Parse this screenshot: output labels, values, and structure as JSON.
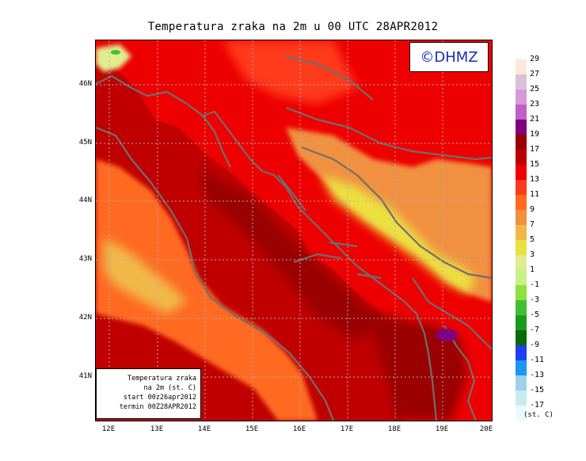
{
  "title": "Temperatura zraka na 2m u 00 UTC 28APR2012",
  "watermark": "©DHMZ",
  "info_box": {
    "line1": "Temperatura zraka",
    "line2": "na 2m (st. C)",
    "line3": "start 00z26apr2012",
    "line4": "termin 00Z28APR2012"
  },
  "latitude_labels": [
    "46N",
    "45N",
    "44N",
    "43N",
    "42N",
    "41N"
  ],
  "longitude_labels": [
    "12E",
    "13E",
    "14E",
    "15E",
    "16E",
    "17E",
    "18E",
    "19E",
    "20E"
  ],
  "legend": {
    "labels": [
      "29",
      "27",
      "25",
      "23",
      "21",
      "19",
      "17",
      "15",
      "13",
      "11",
      "9",
      "7",
      "5",
      "3",
      "1",
      "-1",
      "-3",
      "-5",
      "-7",
      "-9",
      "-11",
      "-13",
      "-15",
      "-17"
    ],
    "colors": [
      "#fbe8d8",
      "#dcc0d8",
      "#d89ad4",
      "#c060c8",
      "#800080",
      "#9a0000",
      "#c00000",
      "#ee0000",
      "#ff3a1a",
      "#ff6a20",
      "#f09040",
      "#f0b848",
      "#ece040",
      "#e0ec90",
      "#c8f088",
      "#90e040",
      "#40c030",
      "#1a9a1a",
      "#0a6a0a",
      "#1e40f0",
      "#1e98ee",
      "#a0d0e8",
      "#c8ecf0",
      "#ecfafc"
    ],
    "units": "(st. C)"
  },
  "colors": {
    "sea": "#c00000",
    "land": "#ee0000",
    "coast": "#6e6e6e",
    "watermark_text": "#1a2eb3"
  }
}
